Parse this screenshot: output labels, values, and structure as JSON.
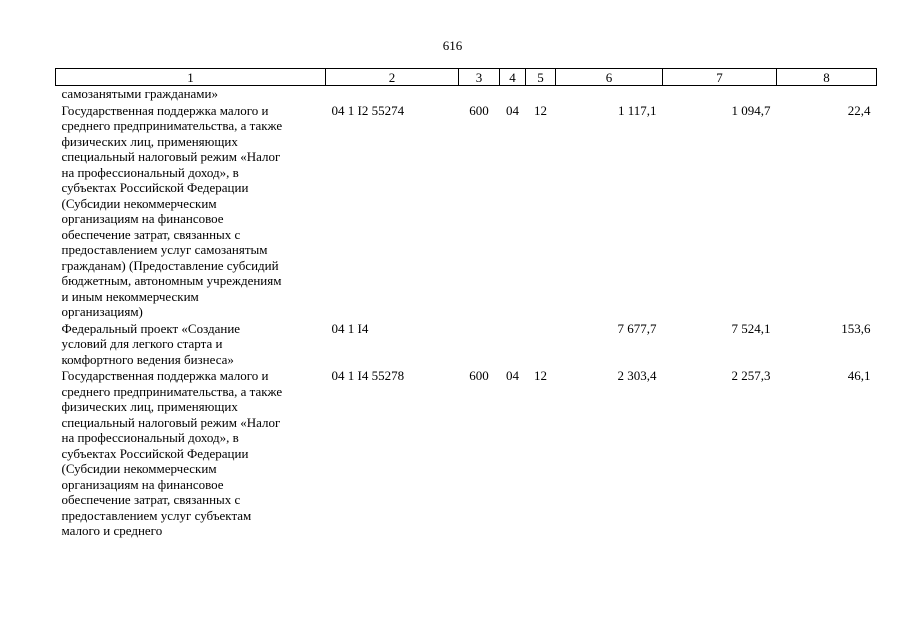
{
  "page_number": "616",
  "table": {
    "headers": [
      "1",
      "2",
      "3",
      "4",
      "5",
      "6",
      "7",
      "8"
    ],
    "continuation_text": "самозанятыми гражданами»",
    "rows": [
      {
        "name": "Государственная поддержка малого и\nсреднего предпринимательства, а также\nфизических лиц, применяющих\nспециальный налоговый режим «Налог\nна профессиональный доход», в\nсубъектах Российской Федерации\n(Субсидии некоммерческим\nорганизациям на финансовое\nобеспечение затрат, связанных с\nпредоставлением услуг самозанятым\nгражданам) (Предоставление субсидий\nбюджетным, автономным учреждениям\nи иным некоммерческим\nорганизациям)",
        "code": "04 1 I2 55274",
        "vr": "600",
        "rz": "04",
        "pr": "12",
        "v6": "1 117,1",
        "v7": "1 094,7",
        "v8": "22,4"
      },
      {
        "name": "Федеральный проект «Создание\nусловий для легкого старта и\nкомфортного ведения бизнеса»",
        "code": "04 1 I4",
        "vr": "",
        "rz": "",
        "pr": "",
        "v6": "7 677,7",
        "v7": "7 524,1",
        "v8": "153,6"
      },
      {
        "name": "Государственная поддержка малого и\nсреднего предпринимательства, а также\nфизических лиц, применяющих\nспециальный налоговый режим «Налог\nна профессиональный доход», в\nсубъектах Российской Федерации\n(Субсидии некоммерческим\nорганизациям на финансовое\nобеспечение затрат, связанных с\nпредоставлением услуг субъектам\nмалого и среднего",
        "code": "04 1 I4 55278",
        "vr": "600",
        "rz": "04",
        "pr": "12",
        "v6": "2 303,4",
        "v7": "2 257,3",
        "v8": "46,1"
      }
    ]
  }
}
